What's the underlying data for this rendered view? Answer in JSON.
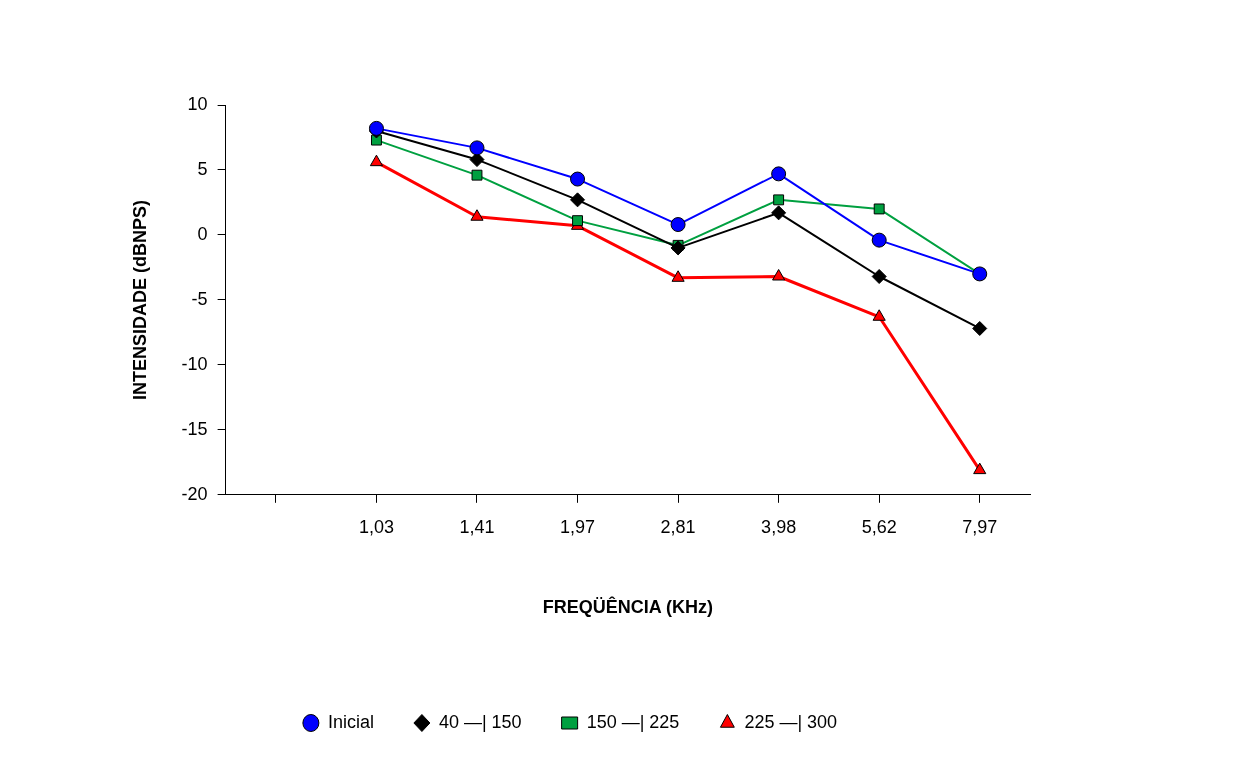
{
  "chart_data": {
    "type": "line",
    "xlabel": "FREQÜÊNCIA (KHz)",
    "ylabel": "INTENSIDADE (dBNPS)",
    "categories": [
      null,
      "1,03",
      "1,41",
      "1,97",
      "2,81",
      "3,98",
      "5,62",
      "7,97"
    ],
    "series": [
      {
        "name": "Inicial",
        "color": "#0000ff",
        "marker": "circle",
        "values": [
          null,
          8.2,
          6.7,
          4.3,
          0.8,
          4.7,
          -0.4,
          -3.0
        ]
      },
      {
        "name": "40 —| 150",
        "color": "#000000",
        "marker": "diamond",
        "values": [
          null,
          8.0,
          5.8,
          2.7,
          -1.0,
          1.7,
          -3.2,
          -7.2
        ]
      },
      {
        "name": "150 —| 225",
        "color": "#00a040",
        "marker": "square",
        "values": [
          null,
          7.3,
          4.6,
          1.1,
          -0.8,
          2.7,
          2.0,
          -3.0
        ]
      },
      {
        "name": "225 —| 300",
        "color": "#ff0000",
        "marker": "triangle",
        "values": [
          null,
          5.6,
          1.4,
          0.7,
          -3.3,
          -3.2,
          -6.3,
          -18.1
        ]
      }
    ],
    "ylim": [
      -20,
      10
    ],
    "yticks": [
      -20,
      -15,
      -10,
      -5,
      0,
      5,
      10
    ],
    "grid": false,
    "legend": "bottom",
    "line_style": "solid"
  }
}
